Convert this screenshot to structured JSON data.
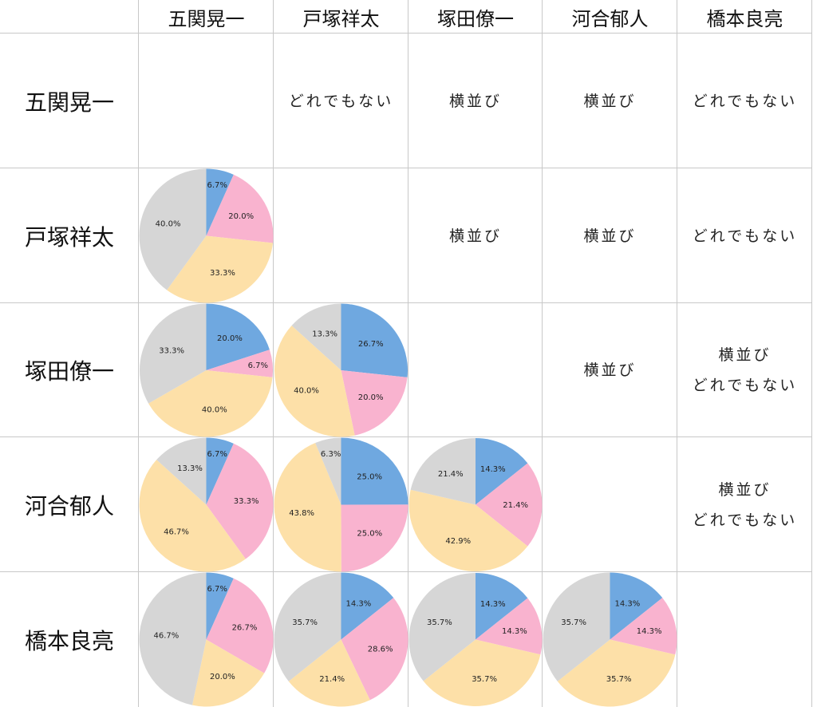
{
  "people": [
    "五関晃一",
    "戸塚祥太",
    "塚田僚一",
    "河合郁人",
    "橋本良亮"
  ],
  "upper_cells": [
    {
      "row": 0,
      "col": 1,
      "lines": [
        "どれでもない"
      ]
    },
    {
      "row": 0,
      "col": 2,
      "lines": [
        "横並び"
      ]
    },
    {
      "row": 0,
      "col": 3,
      "lines": [
        "横並び"
      ]
    },
    {
      "row": 0,
      "col": 4,
      "lines": [
        "どれでもない"
      ]
    },
    {
      "row": 1,
      "col": 2,
      "lines": [
        "横並び"
      ]
    },
    {
      "row": 1,
      "col": 3,
      "lines": [
        "横並び"
      ]
    },
    {
      "row": 1,
      "col": 4,
      "lines": [
        "どれでもない"
      ]
    },
    {
      "row": 2,
      "col": 3,
      "lines": [
        "横並び"
      ]
    },
    {
      "row": 2,
      "col": 4,
      "lines": [
        "横並び",
        "どれでもない"
      ]
    },
    {
      "row": 3,
      "col": 4,
      "lines": [
        "横並び",
        "どれでもない"
      ]
    }
  ],
  "colors": {
    "blue": "#6fa8e0",
    "pink": "#f9b3cf",
    "yellow": "#fde0a8",
    "gray": "#d6d6d6",
    "grid": "#c8c8c8"
  },
  "chart_data": [
    {
      "type": "pie",
      "row": 1,
      "col": 0,
      "values": [
        6.7,
        20.0,
        33.3,
        40.0
      ],
      "labels": [
        "6.7%",
        "20.0%",
        "33.3%",
        "40.0%"
      ]
    },
    {
      "type": "pie",
      "row": 2,
      "col": 0,
      "values": [
        20.0,
        6.7,
        40.0,
        33.3
      ],
      "labels": [
        "20.0%",
        "6.7%",
        "40.0%",
        "33.3%"
      ]
    },
    {
      "type": "pie",
      "row": 2,
      "col": 1,
      "values": [
        26.7,
        20.0,
        40.0,
        13.3
      ],
      "labels": [
        "26.7%",
        "20.0%",
        "40.0%",
        "13.3%"
      ]
    },
    {
      "type": "pie",
      "row": 3,
      "col": 0,
      "values": [
        6.7,
        33.3,
        46.7,
        13.3
      ],
      "labels": [
        "6.7%",
        "33.3%",
        "46.7%",
        "13.3%"
      ]
    },
    {
      "type": "pie",
      "row": 3,
      "col": 1,
      "values": [
        25.0,
        25.0,
        43.8,
        6.3
      ],
      "labels": [
        "25.0%",
        "25.0%",
        "43.8%",
        "6.3%"
      ]
    },
    {
      "type": "pie",
      "row": 3,
      "col": 2,
      "values": [
        14.3,
        21.4,
        42.9,
        21.4
      ],
      "labels": [
        "14.3%",
        "21.4%",
        "42.9%",
        "21.4%"
      ]
    },
    {
      "type": "pie",
      "row": 4,
      "col": 0,
      "values": [
        6.7,
        26.7,
        20.0,
        46.7
      ],
      "labels": [
        "6.7%",
        "26.7%",
        "20.0%",
        "46.7%"
      ]
    },
    {
      "type": "pie",
      "row": 4,
      "col": 1,
      "values": [
        14.3,
        28.6,
        21.4,
        35.7
      ],
      "labels": [
        "14.3%",
        "28.6%",
        "21.4%",
        "35.7%"
      ]
    },
    {
      "type": "pie",
      "row": 4,
      "col": 2,
      "values": [
        14.3,
        14.3,
        35.7,
        35.7
      ],
      "labels": [
        "14.3%",
        "14.3%",
        "35.7%",
        "35.7%"
      ]
    },
    {
      "type": "pie",
      "row": 4,
      "col": 3,
      "values": [
        14.3,
        14.3,
        35.7,
        35.7
      ],
      "labels": [
        "14.3%",
        "14.3%",
        "35.7%",
        "35.7%"
      ]
    }
  ]
}
